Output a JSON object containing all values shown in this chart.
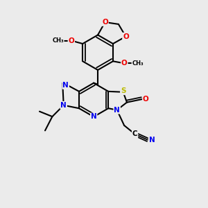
{
  "bg_color": "#ebebeb",
  "atom_colors": {
    "C": "#000000",
    "N": "#0000ee",
    "O": "#ee0000",
    "S": "#bbbb00",
    "H": "#000000"
  },
  "bond_color": "#000000",
  "figsize": [
    3.0,
    3.0
  ],
  "dpi": 100
}
